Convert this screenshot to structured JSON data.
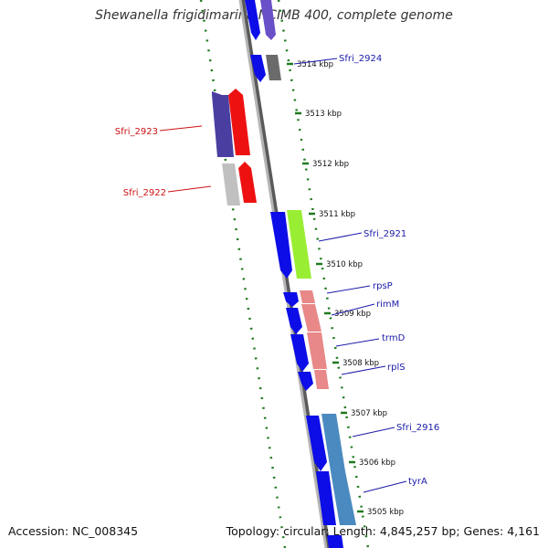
{
  "title": "Shewanella frigidimarina NCIMB 400, complete genome",
  "footer": {
    "accession": "Accession: NC_008345",
    "topology": "Topology: circular; Length: 4,845,257 bp; Genes: 4,161"
  },
  "colors": {
    "backbone": "#8a8a8a",
    "tick": "#1f7a1f",
    "forward_label": "#1a1aa8",
    "reverse_label": "#cc1111"
  },
  "scale_ticks": [
    "3514 kbp",
    "3513 kbp",
    "3512 kbp",
    "3511 kbp",
    "3510 kbp",
    "3509 kbp",
    "3508 kbp",
    "3507 kbp",
    "3506 kbp",
    "3505 kbp"
  ],
  "gene_labels": [
    {
      "name": "Sfri_2924",
      "strand": "forward"
    },
    {
      "name": "Sfri_2923",
      "strand": "reverse"
    },
    {
      "name": "Sfri_2922",
      "strand": "reverse"
    },
    {
      "name": "Sfri_2921",
      "strand": "forward"
    },
    {
      "name": "rpsP",
      "strand": "forward"
    },
    {
      "name": "rimM",
      "strand": "forward"
    },
    {
      "name": "trmD",
      "strand": "forward"
    },
    {
      "name": "rplS",
      "strand": "forward"
    },
    {
      "name": "Sfri_2916",
      "strand": "forward"
    },
    {
      "name": "tyrA",
      "strand": "forward"
    }
  ]
}
